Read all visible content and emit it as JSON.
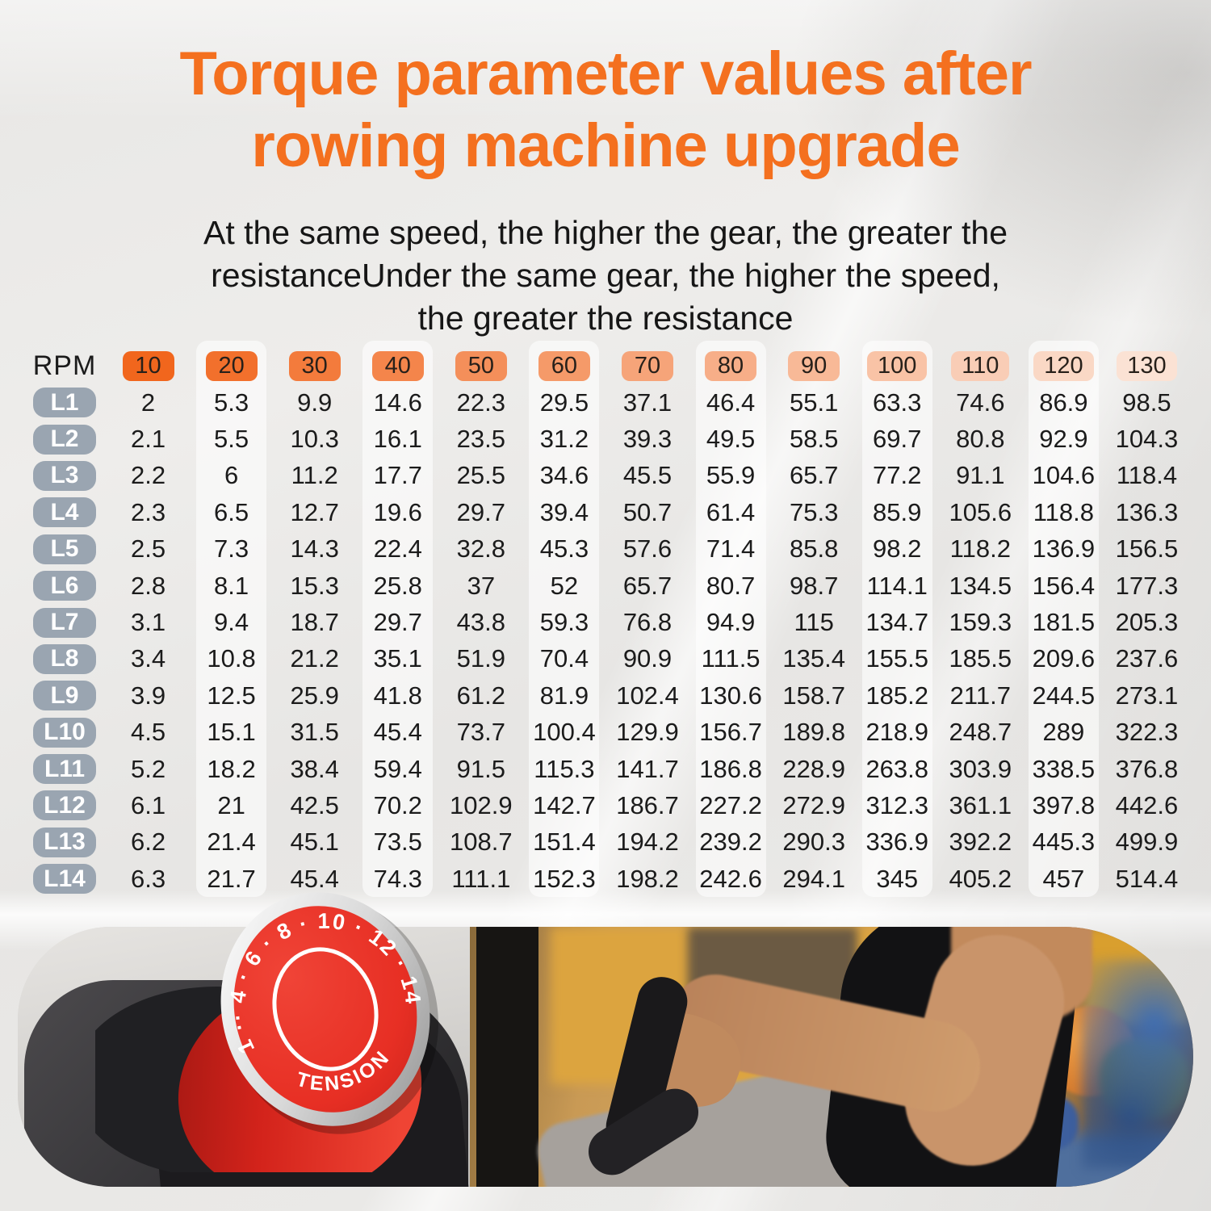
{
  "title": {
    "line1": "Torque parameter values after",
    "line2": "rowing machine upgrade"
  },
  "subtitle": {
    "line1": "At the same speed, the higher the gear, the greater the",
    "line2": "resistanceUnder the same gear, the higher the speed,",
    "line3": "the greater the resistance"
  },
  "chart_data": {
    "type": "table",
    "title": "Torque parameter values after rowing machine upgrade",
    "corner_label": "RPM",
    "rpm_headers": [
      "10",
      "20",
      "30",
      "40",
      "50",
      "60",
      "70",
      "80",
      "90",
      "100",
      "110",
      "120",
      "130"
    ],
    "rows": [
      {
        "level": "L1",
        "values": [
          "2",
          "5.3",
          "9.9",
          "14.6",
          "22.3",
          "29.5",
          "37.1",
          "46.4",
          "55.1",
          "63.3",
          "74.6",
          "86.9",
          "98.5"
        ]
      },
      {
        "level": "L2",
        "values": [
          "2.1",
          "5.5",
          "10.3",
          "16.1",
          "23.5",
          "31.2",
          "39.3",
          "49.5",
          "58.5",
          "69.7",
          "80.8",
          "92.9",
          "104.3"
        ]
      },
      {
        "level": "L3",
        "values": [
          "2.2",
          "6",
          "11.2",
          "17.7",
          "25.5",
          "34.6",
          "45.5",
          "55.9",
          "65.7",
          "77.2",
          "91.1",
          "104.6",
          "118.4"
        ]
      },
      {
        "level": "L4",
        "values": [
          "2.3",
          "6.5",
          "12.7",
          "19.6",
          "29.7",
          "39.4",
          "50.7",
          "61.4",
          "75.3",
          "85.9",
          "105.6",
          "118.8",
          "136.3"
        ]
      },
      {
        "level": "L5",
        "values": [
          "2.5",
          "7.3",
          "14.3",
          "22.4",
          "32.8",
          "45.3",
          "57.6",
          "71.4",
          "85.8",
          "98.2",
          "118.2",
          "136.9",
          "156.5"
        ]
      },
      {
        "level": "L6",
        "values": [
          "2.8",
          "8.1",
          "15.3",
          "25.8",
          "37",
          "52",
          "65.7",
          "80.7",
          "98.7",
          "114.1",
          "134.5",
          "156.4",
          "177.3"
        ]
      },
      {
        "level": "L7",
        "values": [
          "3.1",
          "9.4",
          "18.7",
          "29.7",
          "43.8",
          "59.3",
          "76.8",
          "94.9",
          "115",
          "134.7",
          "159.3",
          "181.5",
          "205.3"
        ]
      },
      {
        "level": "L8",
        "values": [
          "3.4",
          "10.8",
          "21.2",
          "35.1",
          "51.9",
          "70.4",
          "90.9",
          "111.5",
          "135.4",
          "155.5",
          "185.5",
          "209.6",
          "237.6"
        ]
      },
      {
        "level": "L9",
        "values": [
          "3.9",
          "12.5",
          "25.9",
          "41.8",
          "61.2",
          "81.9",
          "102.4",
          "130.6",
          "158.7",
          "185.2",
          "211.7",
          "244.5",
          "273.1"
        ]
      },
      {
        "level": "L10",
        "values": [
          "4.5",
          "15.1",
          "31.5",
          "45.4",
          "73.7",
          "100.4",
          "129.9",
          "156.7",
          "189.8",
          "218.9",
          "248.7",
          "289",
          "322.3"
        ]
      },
      {
        "level": "L11",
        "values": [
          "5.2",
          "18.2",
          "38.4",
          "59.4",
          "91.5",
          "115.3",
          "141.7",
          "186.8",
          "228.9",
          "263.8",
          "303.9",
          "338.5",
          "376.8"
        ]
      },
      {
        "level": "L12",
        "values": [
          "6.1",
          "21",
          "42.5",
          "70.2",
          "102.9",
          "142.7",
          "186.7",
          "227.2",
          "272.9",
          "312.3",
          "361.1",
          "397.8",
          "442.6"
        ]
      },
      {
        "level": "L13",
        "values": [
          "6.2",
          "21.4",
          "45.1",
          "73.5",
          "108.7",
          "151.4",
          "194.2",
          "239.2",
          "290.3",
          "336.9",
          "392.2",
          "445.3",
          "499.9"
        ]
      },
      {
        "level": "L14",
        "values": [
          "6.3",
          "21.7",
          "45.4",
          "74.3",
          "111.1",
          "152.3",
          "198.2",
          "242.6",
          "294.1",
          "345",
          "405.2",
          "457",
          "514.4"
        ]
      }
    ],
    "layout": {
      "grid": false,
      "striped_columns": [
        "20",
        "40",
        "60",
        "80",
        "100",
        "120"
      ]
    }
  },
  "table_style": {
    "header_badge_colors": [
      "#F1661D",
      "#F2702C",
      "#F37B3C",
      "#F4854B",
      "#F48F5A",
      "#F59A69",
      "#F6A479",
      "#F7AE88",
      "#F8B997",
      "#F9C3A6",
      "#F9CDB6",
      "#FAD8C5",
      "#FBE2D4"
    ],
    "level_badge_color": "#9AA5B1",
    "stripe_color": "rgba(255,255,255,0.58)"
  },
  "knob": {
    "dial_numbers": "1 ·· 4 · 6 · 8 · 10 · 12 · 14",
    "label": "TENSION",
    "face_color": "#E93227"
  },
  "colors": {
    "title_orange": "#F4701F",
    "subtitle_text": "#161616",
    "background": "#EAE9E7"
  }
}
